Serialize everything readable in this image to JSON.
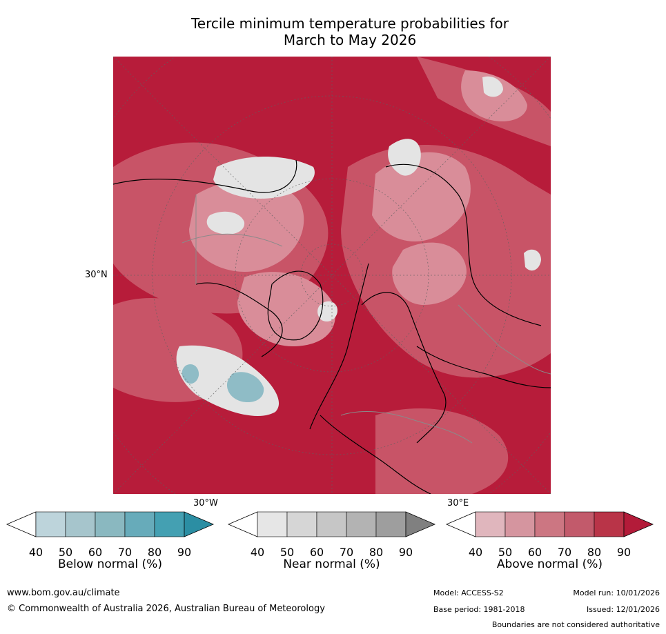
{
  "header": {
    "title_line1": "Tercile minimum temperature probabilities for",
    "title_line2": "March to May 2026"
  },
  "map": {
    "lat_label": "30°N",
    "lon_labels": [
      "30°W",
      "30°E"
    ]
  },
  "legends": [
    {
      "title": "Below normal (%)",
      "ticks": [
        "40",
        "50",
        "60",
        "70",
        "80",
        "90"
      ],
      "colors": [
        "#ffffff",
        "#bdd4db",
        "#a6c5cc",
        "#8ab8c0",
        "#67abba",
        "#44a0b2",
        "#2b8ea3"
      ]
    },
    {
      "title": "Near normal (%)",
      "ticks": [
        "40",
        "50",
        "60",
        "70",
        "80",
        "90"
      ],
      "colors": [
        "#ffffff",
        "#e6e6e6",
        "#d6d6d6",
        "#c6c6c6",
        "#b3b3b3",
        "#9e9e9e",
        "#808080"
      ]
    },
    {
      "title": "Above normal (%)",
      "ticks": [
        "40",
        "50",
        "60",
        "70",
        "80",
        "90"
      ],
      "colors": [
        "#ffffff",
        "#e0b6bd",
        "#d5959f",
        "#cc7682",
        "#c25a6b",
        "#b93448",
        "#b31b39"
      ]
    }
  ],
  "footer": {
    "website": "www.bom.gov.au/climate",
    "copyright": "© Commonwealth of Australia 2026, Australian Bureau of Meteorology",
    "model": "Model: ACCESS-S2",
    "base_period": "Base period: 1981-2018",
    "model_run": "Model run: 10/01/2026",
    "issued": "Issued: 12/01/2026",
    "disclaimer": "Boundaries are not considered authoritative"
  }
}
